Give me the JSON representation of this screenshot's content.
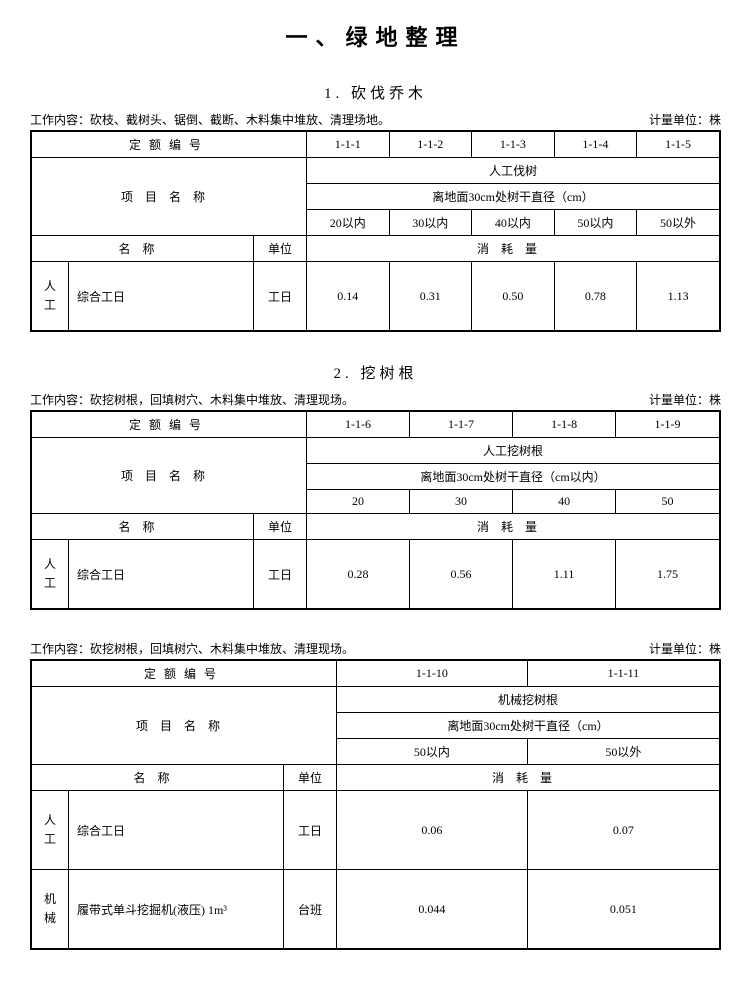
{
  "page_title": "一、绿地整理",
  "section1": {
    "title": "1. 砍伐乔木",
    "work_content_label": "工作内容：",
    "work_content": "砍枝、截树头、锯倒、截断、木料集中堆放、清理场地。",
    "unit_label": "计量单位：",
    "unit": "株",
    "quota_header": "定额编号",
    "quota_codes": [
      "1-1-1",
      "1-1-2",
      "1-1-3",
      "1-1-4",
      "1-1-5"
    ],
    "project_header": "项目名称",
    "category": "人工伐树",
    "diameter_label": "离地面30cm处树干直径（cm）",
    "diameter_values": [
      "20以内",
      "30以内",
      "40以内",
      "50以内",
      "50以外"
    ],
    "name_header": "名称",
    "unit_header": "单位",
    "consumption_header": "消耗量",
    "row_category": "人工",
    "row_name": "综合工日",
    "row_unit": "工日",
    "row_values": [
      "0.14",
      "0.31",
      "0.50",
      "0.78",
      "1.13"
    ]
  },
  "section2": {
    "title": "2. 挖树根",
    "work_content_label": "工作内容：",
    "work_content": "砍挖树根，回填树穴、木料集中堆放、清理现场。",
    "unit_label": "计量单位：",
    "unit": "株",
    "quota_header": "定额编号",
    "quota_codes": [
      "1-1-6",
      "1-1-7",
      "1-1-8",
      "1-1-9"
    ],
    "project_header": "项目名称",
    "category": "人工挖树根",
    "diameter_label": "离地面30cm处树干直径（cm以内）",
    "diameter_values": [
      "20",
      "30",
      "40",
      "50"
    ],
    "name_header": "名称",
    "unit_header": "单位",
    "consumption_header": "消耗量",
    "row_category": "人工",
    "row_name": "综合工日",
    "row_unit": "工日",
    "row_values": [
      "0.28",
      "0.56",
      "1.11",
      "1.75"
    ]
  },
  "section3": {
    "work_content_label": "工作内容：",
    "work_content": "砍挖树根，回填树穴、木料集中堆放、清理现场。",
    "unit_label": "计量单位：",
    "unit": "株",
    "quota_header": "定额编号",
    "quota_codes": [
      "1-1-10",
      "1-1-11"
    ],
    "project_header": "项目名称",
    "category": "机械挖树根",
    "diameter_label": "离地面30cm处树干直径（cm）",
    "diameter_values": [
      "50以内",
      "50以外"
    ],
    "name_header": "名称",
    "unit_header": "单位",
    "consumption_header": "消耗量",
    "row1_category": "人工",
    "row1_name": "综合工日",
    "row1_unit": "工日",
    "row1_values": [
      "0.06",
      "0.07"
    ],
    "row2_category": "机械",
    "row2_name": "履带式单斗挖掘机(液压) 1m³",
    "row2_unit": "台班",
    "row2_values": [
      "0.044",
      "0.051"
    ]
  },
  "styling": {
    "border_color": "#000000",
    "outer_border_width": 2,
    "inner_border_width": 1,
    "background_color": "#ffffff",
    "text_color": "#000000",
    "main_title_fontsize": 22,
    "section_title_fontsize": 15,
    "body_fontsize": 12,
    "font_family": "SimSun"
  }
}
